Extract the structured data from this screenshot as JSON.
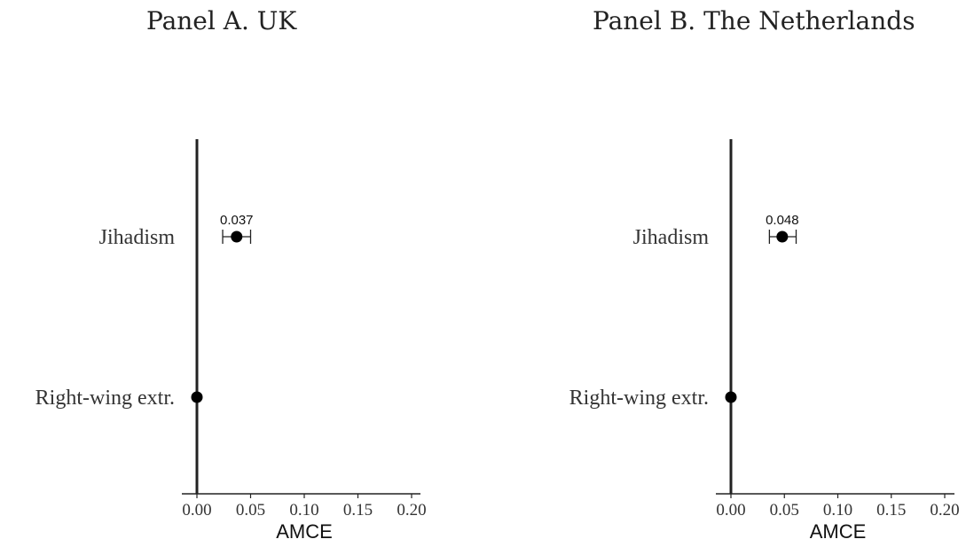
{
  "chart_data": [
    {
      "type": "scatter",
      "title": "Panel A. UK",
      "xlabel": "AMCE",
      "ylabel": "",
      "xlim": [
        0.0,
        0.2
      ],
      "xticks": [
        "0.00",
        "0.05",
        "0.10",
        "0.15",
        "0.20"
      ],
      "categories": [
        "Jihadism",
        "Right-wing extr."
      ],
      "values": [
        0.037,
        0.0
      ],
      "ci": [
        [
          0.024,
          0.05
        ],
        null
      ],
      "data_labels": [
        "0.037",
        ""
      ],
      "reference_line_x": 0,
      "grid": false
    },
    {
      "type": "scatter",
      "title": "Panel B. The Netherlands",
      "xlabel": "AMCE",
      "ylabel": "",
      "xlim": [
        0.0,
        0.2
      ],
      "xticks": [
        "0.00",
        "0.05",
        "0.10",
        "0.15",
        "0.20"
      ],
      "categories": [
        "Jihadism",
        "Right-wing extr."
      ],
      "values": [
        0.048,
        0.0
      ],
      "ci": [
        [
          0.036,
          0.061
        ],
        null
      ],
      "data_labels": [
        "0.048",
        ""
      ],
      "reference_line_x": 0,
      "grid": false
    }
  ],
  "colors": {
    "axis": "#222222",
    "point": "#000000",
    "text": "#333333"
  }
}
